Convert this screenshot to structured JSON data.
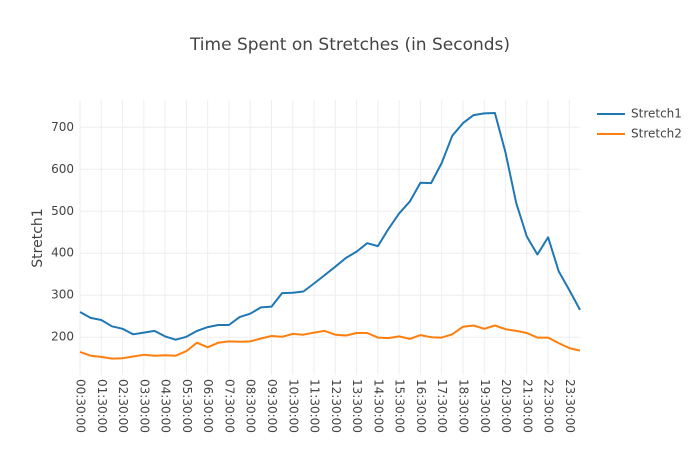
{
  "chart_data": {
    "type": "line",
    "title": "Time Spent on Stretches (in Seconds)",
    "y_label": "Stretch1",
    "categories": [
      "00:30:00",
      null,
      "01:30:00",
      null,
      "02:30:00",
      null,
      "03:30:00",
      null,
      "04:30:00",
      null,
      "05:30:00",
      null,
      "06:30:00",
      null,
      "07:30:00",
      null,
      "08:30:00",
      null,
      "09:30:00",
      null,
      "10:30:00",
      null,
      "11:30:00",
      null,
      "12:30:00",
      null,
      "13:30:00",
      null,
      "14:30:00",
      null,
      "15:30:00",
      null,
      "16:30:00",
      null,
      "17:30:00",
      null,
      "18:30:00",
      null,
      "19:30:00",
      null,
      "20:30:00",
      null,
      "21:30:00",
      null,
      "22:30:00",
      null,
      "23:30:00",
      null
    ],
    "series": [
      {
        "name": "Stretch1",
        "color": "#1f77b4",
        "values": [
          260,
          246,
          241,
          226,
          220,
          207,
          211,
          215,
          202,
          194,
          201,
          215,
          224,
          229,
          229,
          248,
          256,
          271,
          273,
          305,
          306,
          309,
          328,
          348,
          368,
          389,
          404,
          424,
          417,
          458,
          495,
          523,
          568,
          567,
          615,
          680,
          710,
          729,
          733,
          734,
          640,
          520,
          440,
          397,
          438,
          357,
          312,
          265
        ]
      },
      {
        "name": "Stretch2",
        "color": "#ff7f0e",
        "values": [
          165,
          156,
          153,
          149,
          150,
          154,
          158,
          156,
          157,
          156,
          167,
          187,
          176,
          187,
          190,
          189,
          190,
          197,
          203,
          201,
          208,
          206,
          211,
          215,
          206,
          204,
          210,
          210,
          199,
          198,
          202,
          196,
          205,
          200,
          199,
          207,
          225,
          228,
          220,
          228,
          219,
          215,
          210,
          199,
          199,
          186,
          174,
          168
        ]
      }
    ],
    "ylim": [
      110,
      765
    ],
    "yticks": [
      200,
      300,
      400,
      500,
      600,
      700
    ],
    "grid": true,
    "legend": "top-right"
  }
}
